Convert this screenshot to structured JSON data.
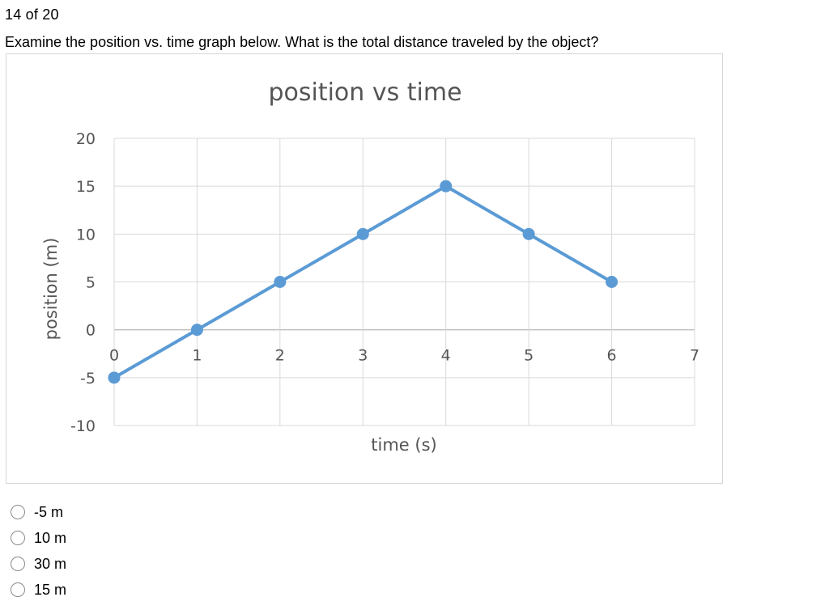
{
  "header": {
    "counter": "14  of 20"
  },
  "question": {
    "text": "Examine the position vs. time graph below. What is the total distance traveled by the object?"
  },
  "chart_data": {
    "type": "line",
    "title": "position vs time",
    "xlabel": "time (s)",
    "ylabel": "position (m)",
    "xlim": [
      0,
      7
    ],
    "ylim": [
      -10,
      20
    ],
    "x_ticks": [
      "0",
      "1",
      "2",
      "3",
      "4",
      "5",
      "6",
      "7"
    ],
    "y_ticks": [
      "20",
      "15",
      "10",
      "5",
      "0",
      "-5",
      "-10"
    ],
    "grid": true,
    "series": [
      {
        "x": [
          0,
          1,
          2,
          3,
          4,
          5,
          6
        ],
        "y": [
          -5,
          0,
          5,
          10,
          15,
          10,
          5
        ],
        "color": "#5b9bd5"
      }
    ]
  },
  "answers": {
    "options": [
      "-5 m",
      "10 m",
      "30 m",
      "15 m"
    ]
  }
}
